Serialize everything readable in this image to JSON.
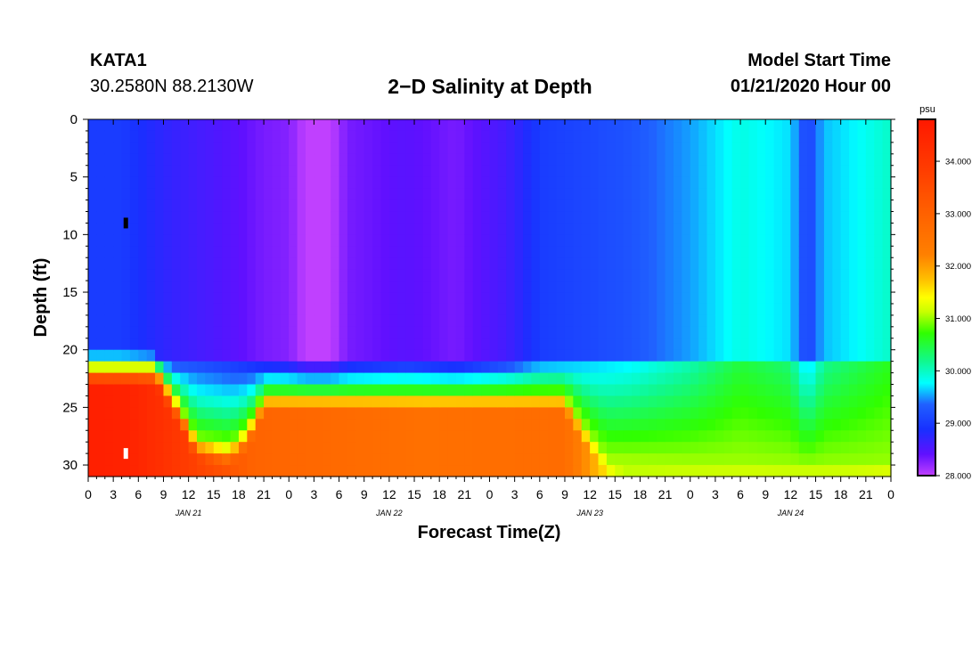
{
  "header": {
    "station": "KATA1",
    "coords": "30.2580N 88.2130W",
    "title": "2−D Salinity at Depth",
    "start_label": "Model Start Time",
    "start_value": "01/21/2020 Hour 00"
  },
  "chart_data": {
    "type": "heatmap",
    "title": "2−D Salinity at Depth",
    "xlabel": "Forecast Time(Z)",
    "ylabel": "Depth (ft)",
    "x_tick_labels": [
      "0",
      "3",
      "6",
      "9",
      "12",
      "15",
      "18",
      "21",
      "0",
      "3",
      "6",
      "9",
      "12",
      "15",
      "18",
      "21",
      "0",
      "3",
      "6",
      "9",
      "12",
      "15",
      "18",
      "21",
      "0",
      "3",
      "6",
      "9",
      "12",
      "15",
      "18",
      "21",
      "0"
    ],
    "x_range_hours": [
      0,
      96
    ],
    "day_labels": [
      {
        "label": "JAN 21",
        "hour": 12
      },
      {
        "label": "JAN 22",
        "hour": 36
      },
      {
        "label": "JAN 23",
        "hour": 60
      },
      {
        "label": "JAN 24",
        "hour": 84
      }
    ],
    "y_ticks": [
      0,
      5,
      10,
      15,
      20,
      25,
      30
    ],
    "y_range_ft": [
      0,
      31
    ],
    "colorbar": {
      "unit": "psu",
      "range": [
        28.0,
        34.8
      ],
      "tick_values": [
        34.0,
        33.0,
        32.0,
        31.0,
        30.0,
        29.0,
        28.0
      ],
      "tick_labels": [
        "34.000",
        "33.000",
        "32.000",
        "31.000",
        "30.000",
        "29.000",
        "28.000"
      ]
    },
    "surface_salinity_by_hour": [
      {
        "hour": 0,
        "psu": 29.0
      },
      {
        "hour": 4,
        "psu": 29.0
      },
      {
        "hour": 10,
        "psu": 28.7
      },
      {
        "hour": 16,
        "psu": 28.5
      },
      {
        "hour": 21,
        "psu": 28.3
      },
      {
        "hour": 24,
        "psu": 28.25
      },
      {
        "hour": 26,
        "psu": 28.0
      },
      {
        "hour": 29,
        "psu": 28.0
      },
      {
        "hour": 31,
        "psu": 28.3
      },
      {
        "hour": 38,
        "psu": 28.45
      },
      {
        "hour": 44,
        "psu": 28.3
      },
      {
        "hour": 50,
        "psu": 28.6
      },
      {
        "hour": 54,
        "psu": 29.0
      },
      {
        "hour": 60,
        "psu": 29.1
      },
      {
        "hour": 65,
        "psu": 29.2
      },
      {
        "hour": 72,
        "psu": 29.5
      },
      {
        "hour": 78,
        "psu": 29.9
      },
      {
        "hour": 84,
        "psu": 29.7
      },
      {
        "hour": 86,
        "psu": 29.0
      },
      {
        "hour": 88,
        "psu": 29.6
      },
      {
        "hour": 96,
        "psu": 30.0
      }
    ],
    "halocline_depth_by_hour": [
      {
        "hour": 0,
        "ft": 20.5
      },
      {
        "hour": 8,
        "ft": 20.5
      },
      {
        "hour": 10,
        "ft": 21.5
      },
      {
        "hour": 60,
        "ft": 21.5
      },
      {
        "hour": 96,
        "ft": 21.0
      }
    ],
    "bottom_layer_top_by_hour": [
      {
        "hour": 0,
        "ft": 21.5
      },
      {
        "hour": 8,
        "ft": 21.5
      },
      {
        "hour": 11,
        "ft": 25
      },
      {
        "hour": 13,
        "ft": 28
      },
      {
        "hour": 17,
        "ft": 28.5
      },
      {
        "hour": 19,
        "ft": 27
      },
      {
        "hour": 21,
        "ft": 24
      },
      {
        "hour": 24,
        "ft": 24
      },
      {
        "hour": 55,
        "ft": 24
      },
      {
        "hour": 57,
        "ft": 24
      },
      {
        "hour": 60,
        "ft": 27.5
      },
      {
        "hour": 62,
        "ft": 29.5
      },
      {
        "hour": 96,
        "ft": 30.5
      }
    ],
    "bottom_layer_salinity_by_hour": [
      {
        "hour": 0,
        "psu": 34.6
      },
      {
        "hour": 5,
        "psu": 34.5
      },
      {
        "hour": 10,
        "psu": 34.0
      },
      {
        "hour": 20,
        "psu": 32.9
      },
      {
        "hour": 40,
        "psu": 32.6
      },
      {
        "hour": 57,
        "psu": 32.7
      },
      {
        "hour": 64,
        "psu": 31.0
      },
      {
        "hour": 80,
        "psu": 31.0
      },
      {
        "hour": 96,
        "psu": 30.3
      }
    ],
    "markers": [
      {
        "hour": 4.5,
        "ft": 9,
        "color": "#000000"
      },
      {
        "hour": 4.5,
        "ft": 29,
        "color": "#ffffff"
      }
    ]
  }
}
